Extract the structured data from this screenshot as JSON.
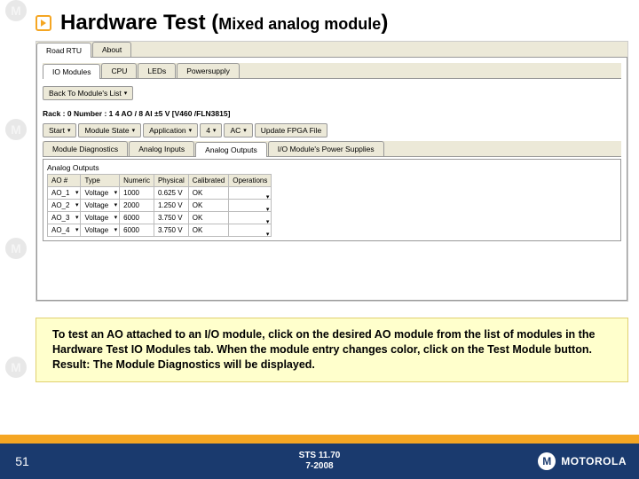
{
  "title": {
    "main": "Hardware Test (",
    "sub": "Mixed analog module",
    "end": ")"
  },
  "tabs": {
    "main": [
      "Road RTU",
      "About"
    ],
    "active_main": 0,
    "sub": [
      "IO Modules",
      "CPU",
      "LEDs",
      "Powersupply"
    ],
    "active_sub": 0
  },
  "back_label": "Back To Module's List",
  "rack_line": "Rack : 0 Number : 1   4 AO / 8 AI ±5  V   [V460 /FLN3815]",
  "toolbar": [
    "Start",
    "Module State",
    "Application",
    "4",
    "AC",
    "Update FPGA File"
  ],
  "inner_tabs": [
    "Module Diagnostics",
    "Analog Inputs",
    "Analog Outputs",
    "I/O Module's Power Supplies"
  ],
  "inner_active": 2,
  "grid_title": "Analog Outputs",
  "grid_cols": [
    "AO #",
    "Type",
    "Numeric",
    "Physical",
    "Calibrated",
    "Operations"
  ],
  "grid_rows": [
    [
      "AO_1",
      "Voltage",
      "1000",
      "0.625 V",
      "OK",
      ""
    ],
    [
      "AO_2",
      "Voltage",
      "2000",
      "1.250 V",
      "OK",
      ""
    ],
    [
      "AO_3",
      "Voltage",
      "6000",
      "3.750 V",
      "OK",
      ""
    ],
    [
      "AO_4",
      "Voltage",
      "6000",
      "3.750 V",
      "OK",
      ""
    ]
  ],
  "caption": "To test an AO attached to an I/O module, click on the desired AO module from the list of modules in the Hardware Test IO Modules tab. When the module entry changes color, click on the Test Module button. Result: The Module Diagnostics will be displayed.",
  "footer": {
    "slide": "51",
    "center1": "STS 11.70",
    "center2": "7-2008",
    "brand": "MOTOROLA"
  }
}
